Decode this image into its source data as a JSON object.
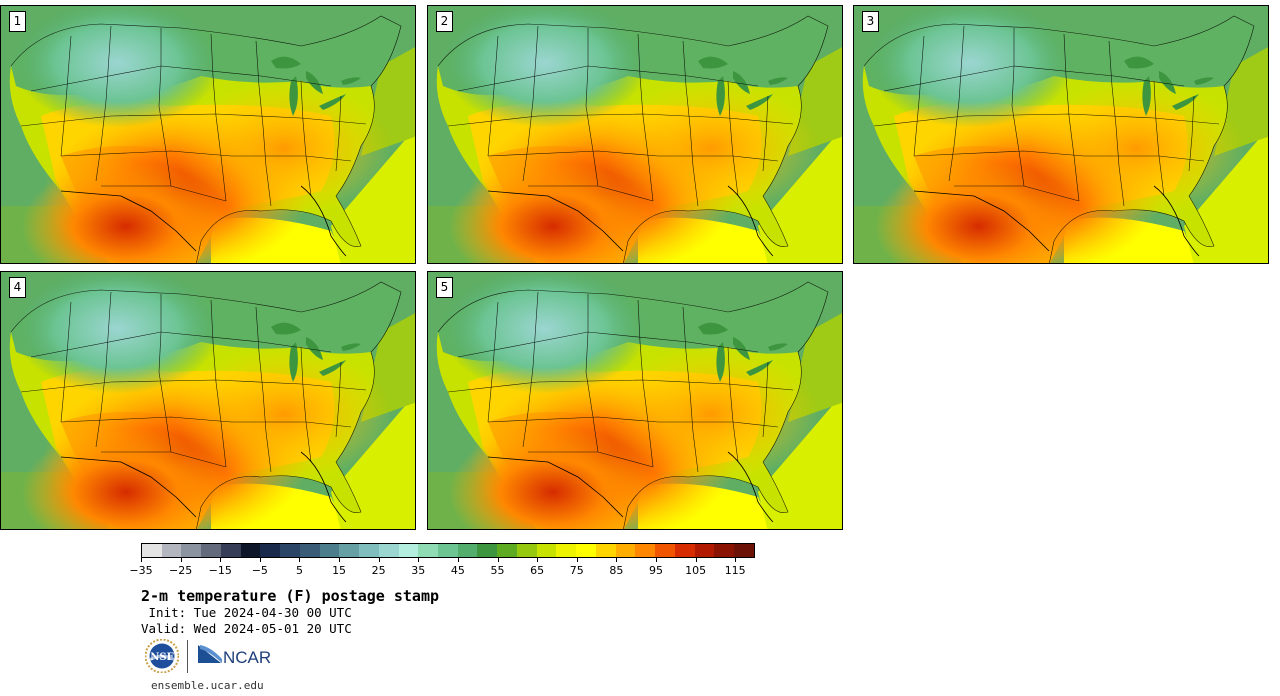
{
  "panels": [
    {
      "label": "1"
    },
    {
      "label": "2"
    },
    {
      "label": "3"
    },
    {
      "label": "4"
    },
    {
      "label": "5"
    }
  ],
  "colorbar": {
    "colors": [
      "#e4e4e4",
      "#b3b6bf",
      "#8c93a0",
      "#626a7c",
      "#353e56",
      "#0e1629",
      "#192a4a",
      "#2a4566",
      "#3a5c76",
      "#4c7d8d",
      "#66a0a4",
      "#80bdbd",
      "#9bd6d1",
      "#b4eede",
      "#8fdcb4",
      "#6cc493",
      "#53ad6c",
      "#3d963f",
      "#5eaa20",
      "#95c80e",
      "#c8e200",
      "#eef400",
      "#ffff00",
      "#ffd500",
      "#ffae00",
      "#ff8700",
      "#f25500",
      "#d62c00",
      "#b11a00",
      "#8a1200",
      "#6b1106"
    ],
    "tick_values": [
      -35,
      -25,
      -15,
      -5,
      5,
      15,
      25,
      35,
      45,
      55,
      65,
      75,
      85,
      95,
      105,
      115
    ],
    "tick_labels": [
      "−35",
      "−25",
      "−15",
      "−5",
      "5",
      "15",
      "25",
      "35",
      "45",
      "55",
      "65",
      "75",
      "85",
      "95",
      "105",
      "115"
    ],
    "min": -35,
    "max": 120
  },
  "title": "2-m temperature (F) postage stamp",
  "init": " Init: Tue 2024-04-30 00 UTC",
  "valid": "Valid: Wed 2024-05-01 20 UTC",
  "logos": {
    "nsf": "NSF",
    "ncar": "NCAR"
  },
  "footer": "ensemble.ucar.edu"
}
